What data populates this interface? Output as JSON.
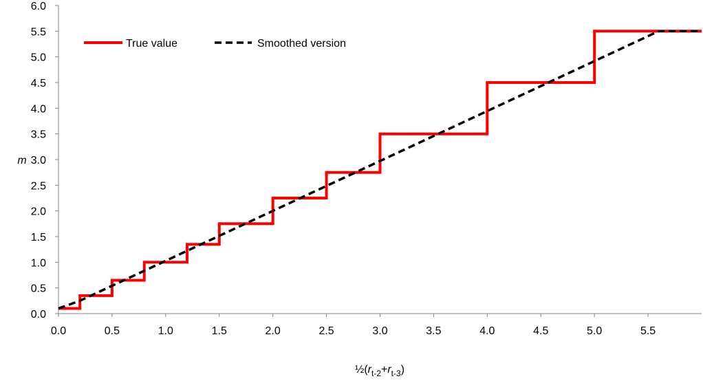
{
  "chart_data": {
    "type": "line",
    "title": "",
    "xlabel": {
      "prefix": "½(",
      "var1": "r",
      "sub1": "t-2",
      "plus": "+",
      "var2": "r",
      "sub2": "t-3",
      "suffix": ")"
    },
    "ylabel": "m",
    "xlim": [
      0.0,
      6.0
    ],
    "ylim": [
      0.0,
      6.0
    ],
    "xticks": [
      0.0,
      0.5,
      1.0,
      1.5,
      2.0,
      2.5,
      3.0,
      3.5,
      4.0,
      4.5,
      5.0,
      5.5
    ],
    "xtick_labels": [
      "0.0",
      "0.5",
      "1.0",
      "1.5",
      "2.0",
      "2.5",
      "3.0",
      "3.5",
      "4.0",
      "4.5",
      "5.0",
      "5.5"
    ],
    "yticks": [
      0.0,
      0.5,
      1.0,
      1.5,
      2.0,
      2.5,
      3.0,
      3.5,
      4.0,
      4.5,
      5.0,
      5.5,
      6.0
    ],
    "ytick_labels": [
      "0.0",
      "0.5",
      "1.0",
      "1.5",
      "2.0",
      "2.5",
      "3.0",
      "3.5",
      "4.0",
      "4.5",
      "5.0",
      "5.5",
      "6.0"
    ],
    "grid": false,
    "legend_position": "top-left",
    "series": [
      {
        "name": "True value",
        "color": "#ff0000",
        "style": "solid",
        "x": [
          0.0,
          0.2,
          0.2,
          0.5,
          0.5,
          0.8,
          0.8,
          1.2,
          1.2,
          1.5,
          1.5,
          2.0,
          2.0,
          2.5,
          2.5,
          3.0,
          3.0,
          4.0,
          4.0,
          5.0,
          5.0,
          6.0
        ],
        "y": [
          0.1,
          0.1,
          0.35,
          0.35,
          0.65,
          0.65,
          1.0,
          1.0,
          1.35,
          1.35,
          1.75,
          1.75,
          2.25,
          2.25,
          2.75,
          2.75,
          3.5,
          3.5,
          4.5,
          4.5,
          5.5,
          5.5
        ]
      },
      {
        "name": "Smoothed version",
        "color": "#000000",
        "style": "dashed",
        "x": [
          0.0,
          0.2,
          5.6,
          6.0
        ],
        "y": [
          0.1,
          0.25,
          5.5,
          5.5
        ]
      }
    ]
  }
}
